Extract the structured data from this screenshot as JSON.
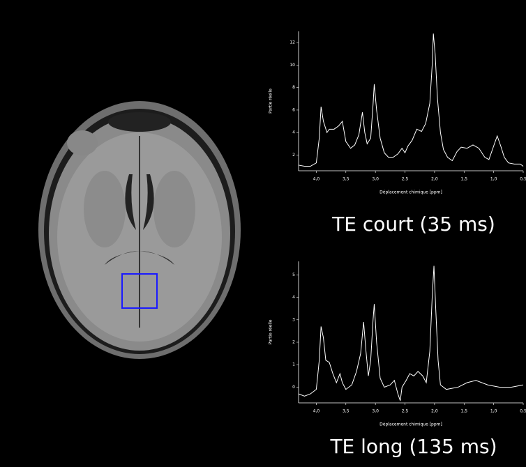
{
  "chart_data": [
    {
      "type": "line",
      "title": "TE court (35 ms)",
      "xlabel": "Déplacement chimique [ppm]",
      "ylabel": "Partie réelle",
      "xlim": [
        4.3,
        0.5
      ],
      "ylim": [
        0.6,
        13
      ],
      "xticks": [
        {
          "value": 4,
          "label": "4,0"
        },
        {
          "value": 3.5,
          "label": "3,5"
        },
        {
          "value": 3,
          "label": "3,0"
        },
        {
          "value": 2.5,
          "label": "2,5"
        },
        {
          "value": 2,
          "label": "2,0"
        },
        {
          "value": 1.5,
          "label": "1,5"
        },
        {
          "value": 1,
          "label": "1,0"
        },
        {
          "value": 0.5,
          "label": "0,5"
        }
      ],
      "yticks": [
        2,
        4,
        6,
        8,
        10,
        12
      ],
      "series": [
        {
          "color": "#ffffff",
          "x": [
            4.3,
            4.2,
            4.1,
            4.0,
            3.95,
            3.92,
            3.88,
            3.82,
            3.78,
            3.7,
            3.62,
            3.56,
            3.5,
            3.42,
            3.35,
            3.28,
            3.22,
            3.18,
            3.14,
            3.08,
            3.04,
            3.02,
            2.98,
            2.92,
            2.85,
            2.78,
            2.7,
            2.62,
            2.55,
            2.5,
            2.45,
            2.38,
            2.3,
            2.22,
            2.15,
            2.08,
            2.04,
            2.02,
            1.99,
            1.95,
            1.9,
            1.85,
            1.78,
            1.7,
            1.62,
            1.55,
            1.45,
            1.35,
            1.25,
            1.15,
            1.08,
            1.0,
            0.94,
            0.88,
            0.82,
            0.75,
            0.65,
            0.55,
            0.5
          ],
          "values": [
            1.1,
            1.0,
            1.0,
            1.3,
            3.5,
            6.3,
            5.0,
            4.0,
            4.3,
            4.3,
            4.6,
            5.0,
            3.2,
            2.6,
            2.9,
            3.8,
            5.8,
            4.0,
            3.0,
            3.5,
            6.5,
            8.3,
            6.0,
            3.5,
            2.2,
            1.8,
            1.8,
            2.1,
            2.6,
            2.2,
            2.8,
            3.3,
            4.3,
            4.1,
            4.8,
            6.6,
            10.0,
            12.8,
            11.0,
            7.0,
            4.0,
            2.5,
            1.8,
            1.5,
            2.3,
            2.7,
            2.6,
            2.9,
            2.6,
            1.8,
            1.6,
            2.8,
            3.7,
            2.8,
            1.8,
            1.3,
            1.2,
            1.2,
            1.0
          ]
        }
      ]
    },
    {
      "type": "line",
      "title": "TE long (135 ms)",
      "xlabel": "Déplacement chimique [ppm]",
      "ylabel": "Partie réelle",
      "xlim": [
        4.3,
        0.5
      ],
      "ylim": [
        -0.7,
        5.6
      ],
      "xticks": [
        {
          "value": 4,
          "label": "4,0"
        },
        {
          "value": 3.5,
          "label": "3,5"
        },
        {
          "value": 3,
          "label": "3,0"
        },
        {
          "value": 2.5,
          "label": "2,5"
        },
        {
          "value": 2,
          "label": "2,0"
        },
        {
          "value": 1.5,
          "label": "1,5"
        },
        {
          "value": 1,
          "label": "1,0"
        },
        {
          "value": 0.5,
          "label": "0,5"
        }
      ],
      "yticks": [
        0,
        1,
        2,
        3,
        4,
        5
      ],
      "series": [
        {
          "color": "#ffffff",
          "x": [
            4.3,
            4.2,
            4.1,
            4.0,
            3.95,
            3.92,
            3.88,
            3.84,
            3.78,
            3.72,
            3.66,
            3.6,
            3.56,
            3.5,
            3.4,
            3.32,
            3.25,
            3.2,
            3.16,
            3.12,
            3.08,
            3.04,
            3.02,
            2.98,
            2.92,
            2.85,
            2.75,
            2.68,
            2.62,
            2.58,
            2.55,
            2.48,
            2.42,
            2.35,
            2.28,
            2.2,
            2.14,
            2.08,
            2.04,
            2.01,
            1.98,
            1.94,
            1.9,
            1.8,
            1.6,
            1.45,
            1.3,
            1.1,
            0.9,
            0.7,
            0.5
          ],
          "values": [
            -0.3,
            -0.4,
            -0.3,
            -0.1,
            1.2,
            2.7,
            2.2,
            1.2,
            1.1,
            0.6,
            0.2,
            0.6,
            0.2,
            -0.1,
            0.1,
            0.7,
            1.5,
            2.9,
            1.6,
            0.5,
            1.2,
            3.0,
            3.7,
            2.0,
            0.4,
            0.0,
            0.1,
            0.3,
            -0.3,
            -0.6,
            0.0,
            0.3,
            0.6,
            0.5,
            0.7,
            0.5,
            0.2,
            1.6,
            4.0,
            5.4,
            3.5,
            1.2,
            0.1,
            -0.1,
            0.0,
            0.2,
            0.3,
            0.1,
            0.0,
            0.0,
            0.1
          ]
        }
      ]
    }
  ]
}
